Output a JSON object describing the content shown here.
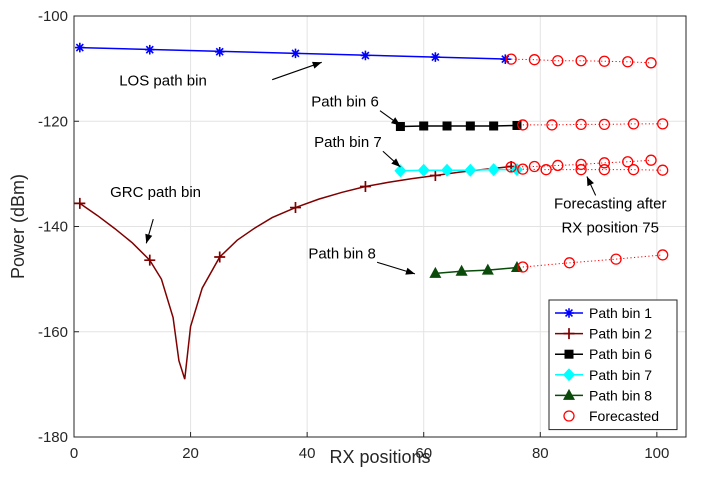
{
  "chart_data": {
    "type": "line",
    "title": "",
    "xlabel": "RX positions",
    "ylabel": "Power (dBm)",
    "xlim": [
      0,
      105
    ],
    "ylim": [
      -180,
      -100
    ],
    "xticks": [
      0,
      20,
      40,
      60,
      80,
      100
    ],
    "yticks": [
      -180,
      -160,
      -140,
      -120,
      -100
    ],
    "xtick_labels": [
      "0",
      "20",
      "40",
      "60",
      "80",
      "100"
    ],
    "ytick_labels": [
      "-180",
      "-160",
      "-140",
      "-120",
      "-100"
    ],
    "grid": true,
    "legend_position": "bottom-right",
    "series": [
      {
        "name": "Path bin 1",
        "color": "#0000ff",
        "marker": "asterisk",
        "x": [
          1,
          75
        ],
        "y": [
          -106.0,
          -108.2
        ],
        "marker_x": [
          1,
          13,
          25,
          38,
          50,
          62,
          74
        ],
        "marker_y": [
          -106.0,
          -106.4,
          -106.8,
          -107.1,
          -107.5,
          -107.8,
          -108.2
        ]
      },
      {
        "name": "Path bin 2",
        "color": "#800000",
        "marker": "plus",
        "x": [
          1,
          4,
          7,
          10,
          13,
          15,
          17,
          18,
          19,
          20,
          22,
          25,
          28,
          31,
          34,
          38,
          42,
          46,
          50,
          54,
          58,
          62,
          66,
          70,
          75
        ],
        "y": [
          -135.6,
          -137.9,
          -140.4,
          -143.1,
          -146.4,
          -150.0,
          -157.3,
          -165.5,
          -169.0,
          -159.0,
          -151.7,
          -145.8,
          -142.6,
          -140.3,
          -138.3,
          -136.4,
          -134.8,
          -133.5,
          -132.4,
          -131.6,
          -130.9,
          -130.3,
          -129.7,
          -129.2,
          -128.6
        ],
        "marker_x": [
          1,
          13,
          25,
          38,
          50,
          62,
          75
        ],
        "marker_y": [
          -135.6,
          -146.4,
          -145.8,
          -136.4,
          -132.4,
          -130.3,
          -128.6
        ]
      },
      {
        "name": "Path bin 6",
        "color": "#000000",
        "marker": "square",
        "x": [
          56,
          60,
          64,
          68,
          72,
          76
        ],
        "y": [
          -121.0,
          -120.9,
          -120.9,
          -120.9,
          -120.9,
          -120.8
        ],
        "marker_x": [
          56,
          60,
          64,
          68,
          72,
          76
        ],
        "marker_y": [
          -121.0,
          -120.9,
          -120.9,
          -120.9,
          -120.9,
          -120.8
        ]
      },
      {
        "name": "Path bin 7",
        "color": "#00ffff",
        "marker": "diamond",
        "x": [
          56,
          60,
          64,
          68,
          72,
          76
        ],
        "y": [
          -129.4,
          -129.3,
          -129.3,
          -129.3,
          -129.2,
          -129.2
        ],
        "marker_x": [
          56,
          60,
          64,
          68,
          72,
          76
        ],
        "marker_y": [
          -129.4,
          -129.3,
          -129.3,
          -129.3,
          -129.2,
          -129.2
        ]
      },
      {
        "name": "Path bin 8",
        "color": "#0a4a0a",
        "marker": "triangle",
        "x": [
          62,
          66.5,
          71,
          76
        ],
        "y": [
          -148.9,
          -148.5,
          -148.3,
          -147.8
        ],
        "marker_x": [
          62,
          66.5,
          71,
          76
        ],
        "marker_y": [
          -148.9,
          -148.5,
          -148.3,
          -147.8
        ]
      }
    ],
    "forecast": {
      "name": "Forecasted",
      "color": "#ff0000",
      "marker": "circle",
      "segments": [
        {
          "x": [
            75,
            79,
            83,
            87,
            91,
            95,
            99
          ],
          "y": [
            -108.2,
            -108.3,
            -108.5,
            -108.5,
            -108.6,
            -108.7,
            -108.9
          ]
        },
        {
          "x": [
            77,
            82,
            87,
            91,
            96,
            101
          ],
          "y": [
            -120.7,
            -120.7,
            -120.6,
            -120.6,
            -120.5,
            -120.5
          ]
        },
        {
          "x": [
            75,
            79,
            83,
            87,
            91,
            95,
            99
          ],
          "y": [
            -128.7,
            -128.6,
            -128.4,
            -128.2,
            -127.9,
            -127.7,
            -127.4
          ]
        },
        {
          "x": [
            77,
            81,
            87,
            91,
            96,
            101
          ],
          "y": [
            -129.1,
            -129.2,
            -129.2,
            -129.2,
            -129.2,
            -129.3
          ]
        },
        {
          "x": [
            77,
            85,
            93,
            101
          ],
          "y": [
            -147.7,
            -146.9,
            -146.2,
            -145.4
          ]
        }
      ]
    },
    "annotations": [
      {
        "text": "LOS path bin",
        "anchor": "middle",
        "tx": 163,
        "ty": -113.2,
        "ax": [
          34,
          -112.1
        ],
        "ah": [
          42.5,
          -108.8
        ]
      },
      {
        "text": "Path bin 6",
        "anchor": "middle",
        "tx": 46.5,
        "ty": -117.2,
        "ax": [
          52.5,
          -118.0
        ],
        "ah": [
          56,
          -120.8
        ]
      },
      {
        "text": "Path bin 7",
        "anchor": "middle",
        "tx": 47,
        "ty": -124.9,
        "ax": [
          53,
          -125.7
        ],
        "ah": [
          56,
          -128.7
        ]
      },
      {
        "text": "GRC path bin",
        "anchor": "middle",
        "tx": 14,
        "ty": -134.4,
        "ax": [
          13.6,
          -138.6
        ],
        "ah": [
          12.4,
          -143.2
        ]
      },
      {
        "text": "Forecasting after",
        "anchor": "middle",
        "tx": 92,
        "ty": -136.6,
        "ax": [
          89.5,
          -134.1
        ],
        "ah": [
          88,
          -130.5
        ]
      },
      {
        "text": "RX position 75",
        "anchor": "middle",
        "tx": 92,
        "ty": -141.1,
        "ax": null,
        "ah": null
      },
      {
        "text": "Path bin 8",
        "anchor": "middle",
        "tx": 46,
        "ty": -146.1,
        "ax": [
          52,
          -146.8
        ],
        "ah": [
          58.5,
          -149.0
        ]
      }
    ]
  }
}
